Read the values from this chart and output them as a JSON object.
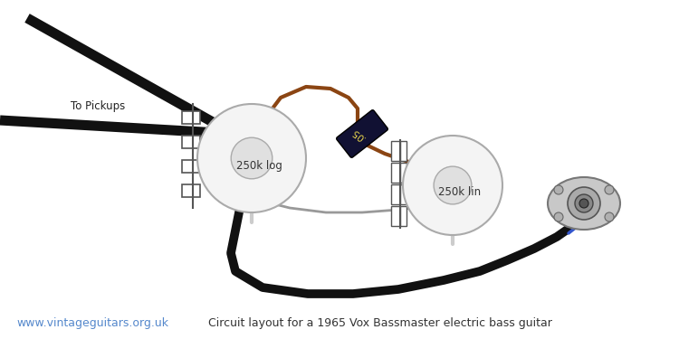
{
  "bg_color": "#ffffff",
  "title_text": "Circuit layout for a 1965 Vox Bassmaster electric bass guitar",
  "title_color": "#333333",
  "title_fontsize": 9,
  "website_text": "www.vintageguitars.org.uk",
  "website_color": "#5588cc",
  "website_fontsize": 9,
  "to_pickups_text": "To Pickups",
  "black_wire_color": "#111111",
  "brown_wire_color": "#8B4513",
  "blue_wire_color": "#3355cc",
  "gray_wire_color": "#999999",
  "cap_label": ".05",
  "pot1_label": "250k log",
  "pot2_label": "250k lin"
}
